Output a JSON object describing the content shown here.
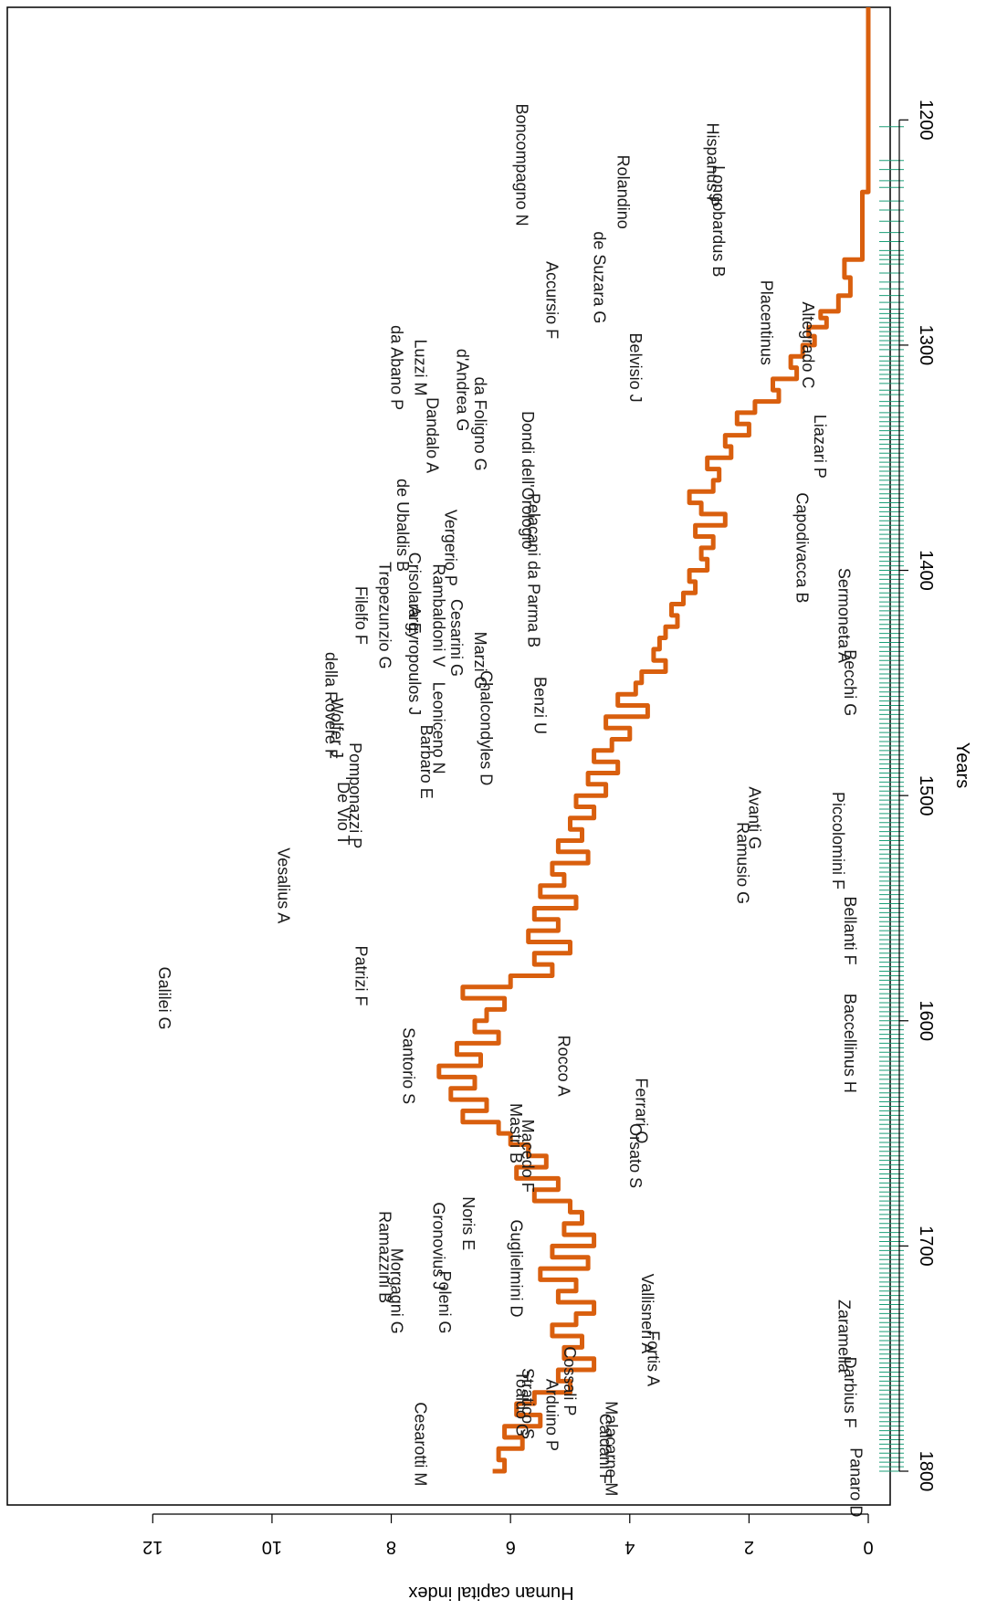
{
  "chart_data": {
    "type": "line",
    "orientation": "rotated-90-clockwise",
    "xlabel": "Years",
    "ylabel": "Human capital index",
    "xlim": [
      1150,
      1815
    ],
    "ylim": [
      0,
      13
    ],
    "x_ticks": [
      1200,
      1300,
      1400,
      1500,
      1600,
      1700,
      1800
    ],
    "y_ticks": [
      0,
      2,
      4,
      6,
      8,
      10,
      12
    ],
    "grid": false,
    "legend": "none",
    "colors": {
      "line": "#d95f0e",
      "rug": "#1a9e77",
      "labels": "#1a1a1a"
    },
    "series": [
      {
        "x": [
          1150,
          1232,
          1232,
          1262,
          1262,
          1270,
          1278,
          1285,
          1288,
          1292,
          1296,
          1300,
          1305,
          1310,
          1315,
          1320,
          1325,
          1330,
          1335,
          1340,
          1345,
          1350,
          1355,
          1360,
          1365,
          1370,
          1375,
          1380,
          1385,
          1390,
          1395,
          1400,
          1405,
          1410,
          1415,
          1420,
          1425,
          1430,
          1435,
          1440,
          1445,
          1450,
          1455,
          1460,
          1465,
          1470,
          1475,
          1480,
          1485,
          1490,
          1495,
          1500,
          1505,
          1510,
          1515,
          1520,
          1525,
          1530,
          1535,
          1540,
          1545,
          1550,
          1555,
          1560,
          1565,
          1570,
          1575,
          1580,
          1585,
          1590,
          1595,
          1600,
          1605,
          1610,
          1615,
          1620,
          1625,
          1630,
          1635,
          1640,
          1645,
          1650,
          1655,
          1660,
          1665,
          1670,
          1675,
          1680,
          1685,
          1690,
          1695,
          1700,
          1705,
          1710,
          1715,
          1720,
          1725,
          1730,
          1735,
          1740,
          1745,
          1750,
          1755,
          1760,
          1765,
          1770,
          1775,
          1780,
          1785,
          1790,
          1795,
          1800
        ],
        "y": [
          0,
          0,
          0.1,
          0.1,
          0.4,
          0.3,
          0.5,
          0.8,
          0.7,
          1.0,
          0.9,
          1.1,
          1.3,
          1.2,
          1.6,
          1.5,
          1.9,
          2.2,
          2.0,
          2.4,
          2.3,
          2.7,
          2.5,
          2.6,
          3.0,
          2.8,
          2.4,
          2.9,
          2.6,
          2.8,
          2.7,
          3.0,
          2.9,
          3.1,
          3.3,
          3.2,
          3.4,
          3.5,
          3.6,
          3.4,
          3.8,
          3.9,
          4.2,
          3.7,
          4.4,
          4.0,
          4.3,
          4.6,
          4.2,
          4.7,
          4.4,
          4.9,
          4.6,
          5.0,
          4.8,
          5.2,
          4.7,
          5.3,
          5.1,
          5.5,
          4.9,
          5.6,
          5.2,
          5.7,
          5.0,
          5.6,
          5.3,
          6.0,
          6.8,
          6.1,
          6.4,
          6.6,
          6.2,
          6.9,
          6.5,
          7.2,
          6.6,
          7.0,
          6.4,
          6.8,
          6.2,
          6.0,
          5.7,
          5.4,
          5.9,
          5.2,
          5.6,
          5.0,
          4.8,
          5.1,
          4.6,
          5.3,
          4.7,
          5.5,
          4.9,
          5.2,
          4.6,
          4.9,
          5.3,
          4.8,
          5.1,
          4.6,
          5.2,
          5.0,
          5.6,
          5.9,
          5.5,
          6.1,
          5.8,
          6.2,
          6.1,
          6.3
        ],
        "interpolation": "step"
      }
    ],
    "rug_x": [
      1203,
      1218,
      1222,
      1227,
      1230,
      1236,
      1240,
      1245,
      1250,
      1254,
      1258,
      1260,
      1262,
      1264,
      1268,
      1272,
      1275,
      1278,
      1281,
      1284,
      1286,
      1288,
      1290,
      1292,
      1294,
      1296,
      1298,
      1300,
      1302,
      1305,
      1307,
      1309,
      1311,
      1313,
      1315,
      1317,
      1320,
      1322,
      1325,
      1327,
      1330,
      1332,
      1334,
      1336,
      1338,
      1340,
      1342,
      1344,
      1346,
      1348,
      1350,
      1352,
      1354,
      1356,
      1358,
      1360,
      1362,
      1364,
      1366,
      1368,
      1370,
      1372,
      1374,
      1376,
      1378,
      1380,
      1382,
      1384,
      1386,
      1388,
      1390,
      1392,
      1394,
      1396,
      1398,
      1400,
      1402,
      1404,
      1406,
      1408,
      1410,
      1412,
      1414,
      1416,
      1418,
      1420,
      1422,
      1424,
      1426,
      1428,
      1430,
      1432,
      1434,
      1436,
      1438,
      1440,
      1442,
      1444,
      1446,
      1448,
      1450,
      1452,
      1454,
      1456,
      1458,
      1460,
      1462,
      1464,
      1466,
      1468,
      1470,
      1472,
      1474,
      1476,
      1478,
      1480,
      1482,
      1484,
      1486,
      1488,
      1490,
      1492,
      1494,
      1496,
      1498,
      1500,
      1502,
      1504,
      1506,
      1508,
      1510,
      1512,
      1514,
      1516,
      1518,
      1520,
      1522,
      1524,
      1526,
      1528,
      1530,
      1532,
      1534,
      1536,
      1538,
      1540,
      1542,
      1544,
      1546,
      1548,
      1550,
      1552,
      1554,
      1556,
      1558,
      1560,
      1562,
      1564,
      1566,
      1568,
      1570,
      1572,
      1574,
      1576,
      1578,
      1580,
      1582,
      1584,
      1586,
      1588,
      1590,
      1592,
      1594,
      1596,
      1598,
      1600,
      1602,
      1604,
      1606,
      1608,
      1610,
      1612,
      1614,
      1616,
      1618,
      1620,
      1622,
      1624,
      1626,
      1628,
      1630,
      1632,
      1634,
      1636,
      1638,
      1640,
      1642,
      1644,
      1646,
      1648,
      1650,
      1652,
      1654,
      1656,
      1658,
      1660,
      1662,
      1664,
      1666,
      1668,
      1670,
      1672,
      1674,
      1676,
      1678,
      1680,
      1682,
      1684,
      1686,
      1688,
      1690,
      1692,
      1694,
      1696,
      1698,
      1700,
      1702,
      1704,
      1706,
      1708,
      1710,
      1712,
      1714,
      1716,
      1718,
      1720,
      1722,
      1724,
      1726,
      1728,
      1730,
      1732,
      1734,
      1736,
      1738,
      1740,
      1742,
      1744,
      1746,
      1748,
      1750,
      1752,
      1754,
      1756,
      1758,
      1760,
      1762,
      1764,
      1766,
      1768,
      1770,
      1772,
      1774,
      1776,
      1778,
      1780,
      1782,
      1784,
      1786,
      1788,
      1790,
      1792,
      1794,
      1796,
      1798,
      1800
    ],
    "annotations": [
      {
        "text": "Galilei G",
        "x": 1590,
        "y": 11.9
      },
      {
        "text": "Vesalius A",
        "x": 1540,
        "y": 9.9
      },
      {
        "text": "Patrizi F",
        "x": 1580,
        "y": 8.6
      },
      {
        "text": "Santorio S",
        "x": 1620,
        "y": 7.8
      },
      {
        "text": "Ramazzini B",
        "x": 1705,
        "y": 8.2
      },
      {
        "text": "Morgagni G",
        "x": 1720,
        "y": 8.0
      },
      {
        "text": "Cesarotti M",
        "x": 1788,
        "y": 7.6
      },
      {
        "text": "della Rovere F",
        "x": 1460,
        "y": 9.1
      },
      {
        "text": "Wolfer J",
        "x": 1470,
        "y": 9.0
      },
      {
        "text": "De Vio T",
        "x": 1508,
        "y": 8.9
      },
      {
        "text": "Pomponazzi P",
        "x": 1500,
        "y": 8.7
      },
      {
        "text": "Filelfo F",
        "x": 1420,
        "y": 8.6
      },
      {
        "text": "Trepezunzio G",
        "x": 1420,
        "y": 8.2
      },
      {
        "text": "de Ubaldis B",
        "x": 1380,
        "y": 7.9
      },
      {
        "text": "Argyropoulos J",
        "x": 1440,
        "y": 7.7
      },
      {
        "text": "Crisolara E",
        "x": 1410,
        "y": 7.7
      },
      {
        "text": "Barbaro E",
        "x": 1485,
        "y": 7.5
      },
      {
        "text": "Leoniceno N",
        "x": 1470,
        "y": 7.3
      },
      {
        "text": "Rambaldoni V",
        "x": 1420,
        "y": 7.3
      },
      {
        "text": "Vergerio P",
        "x": 1390,
        "y": 7.1
      },
      {
        "text": "Cesarini G",
        "x": 1430,
        "y": 7.0
      },
      {
        "text": "Marzi G",
        "x": 1440,
        "y": 6.6
      },
      {
        "text": "Chalcondyles D",
        "x": 1470,
        "y": 6.5
      },
      {
        "text": "da Abano P",
        "x": 1310,
        "y": 8.0
      },
      {
        "text": "Luzzi M",
        "x": 1310,
        "y": 7.6
      },
      {
        "text": "Dandalo A",
        "x": 1340,
        "y": 7.4
      },
      {
        "text": "d'Andrea G",
        "x": 1320,
        "y": 6.9
      },
      {
        "text": "da Foligno G",
        "x": 1335,
        "y": 6.6
      },
      {
        "text": "Boncompagno N",
        "x": 1220,
        "y": 5.9
      },
      {
        "text": "Rolandino",
        "x": 1232,
        "y": 4.2
      },
      {
        "text": "de Suzara G",
        "x": 1270,
        "y": 4.6
      },
      {
        "text": "Accursio F",
        "x": 1280,
        "y": 5.4
      },
      {
        "text": "Belvisio J",
        "x": 1310,
        "y": 4.0
      },
      {
        "text": "Dondi dell'Orologio",
        "x": 1360,
        "y": 5.8
      },
      {
        "text": "Pelacani da Parma B",
        "x": 1400,
        "y": 5.7
      },
      {
        "text": "Hispanus P",
        "x": 1220,
        "y": 2.7
      },
      {
        "text": "Longobardus B",
        "x": 1245,
        "y": 2.6
      },
      {
        "text": "Placentinus",
        "x": 1290,
        "y": 1.8
      },
      {
        "text": "Altegrado C",
        "x": 1300,
        "y": 1.1
      },
      {
        "text": "Liazari P",
        "x": 1345,
        "y": 0.9
      },
      {
        "text": "Capodivacca B",
        "x": 1390,
        "y": 1.2
      },
      {
        "text": "Sermoneta A",
        "x": 1420,
        "y": 0.5
      },
      {
        "text": "Becchi G",
        "x": 1450,
        "y": 0.4
      },
      {
        "text": "Piccolomini F",
        "x": 1520,
        "y": 0.6
      },
      {
        "text": "Bellanti F",
        "x": 1560,
        "y": 0.4
      },
      {
        "text": "Baccellinus H",
        "x": 1610,
        "y": 0.4
      },
      {
        "text": "Zaramella",
        "x": 1740,
        "y": 0.5
      },
      {
        "text": "Darbius F",
        "x": 1765,
        "y": 0.4
      },
      {
        "text": "Panaro D",
        "x": 1805,
        "y": 0.3
      },
      {
        "text": "Guglielmini D",
        "x": 1710,
        "y": 6.0
      },
      {
        "text": "Gronovius J",
        "x": 1700,
        "y": 7.3
      },
      {
        "text": "Noris E",
        "x": 1690,
        "y": 6.8
      },
      {
        "text": "Caldani F",
        "x": 1790,
        "y": 4.5
      },
      {
        "text": "Malacarne M",
        "x": 1790,
        "y": 4.4
      },
      {
        "text": "Toaldo G",
        "x": 1770,
        "y": 5.9
      },
      {
        "text": "Arduino P",
        "x": 1775,
        "y": 5.4
      },
      {
        "text": "Cossali P",
        "x": 1760,
        "y": 5.1
      },
      {
        "text": "Stratico S",
        "x": 1770,
        "y": 5.8
      },
      {
        "text": "Vallisneri A",
        "x": 1730,
        "y": 3.8
      },
      {
        "text": "Poleni G",
        "x": 1725,
        "y": 7.2
      },
      {
        "text": "Fortis A",
        "x": 1750,
        "y": 3.7
      },
      {
        "text": "Orsato S",
        "x": 1660,
        "y": 4.0
      },
      {
        "text": "Ferrari O",
        "x": 1640,
        "y": 3.9
      },
      {
        "text": "Mastri B",
        "x": 1650,
        "y": 6.0
      },
      {
        "text": "Macedo F",
        "x": 1660,
        "y": 5.8
      },
      {
        "text": "Rocco A",
        "x": 1620,
        "y": 5.2
      },
      {
        "text": "Benzi U",
        "x": 1460,
        "y": 5.6
      },
      {
        "text": "Avanti G",
        "x": 1510,
        "y": 2.0
      },
      {
        "text": "Ramusio G",
        "x": 1530,
        "y": 2.2
      }
    ]
  }
}
